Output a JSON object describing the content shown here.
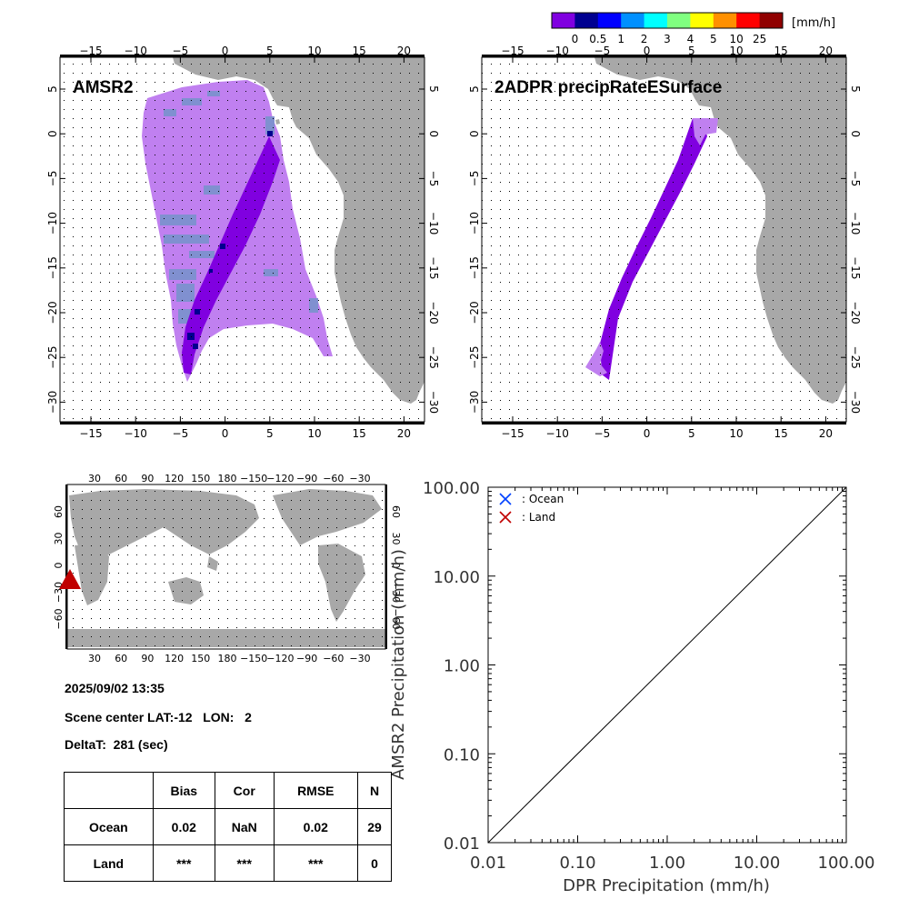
{
  "colorbar": {
    "unit": "[mm/h]",
    "colors": [
      "#8000e0",
      "#000090",
      "#0000ff",
      "#0090ff",
      "#00ffff",
      "#80ff80",
      "#ffff00",
      "#ff9000",
      "#ff0000",
      "#900000"
    ],
    "labels": [
      "0",
      "0.5",
      "1",
      "2",
      "3",
      "4",
      "5",
      "10",
      "25"
    ]
  },
  "maps": {
    "left_title": "AMSR2",
    "right_title": "2ADPR precipRateESurface",
    "lon_ticks": [
      "−15",
      "−10",
      "−5",
      "0",
      "5",
      "10",
      "15",
      "20"
    ],
    "lat_ticks": [
      "5",
      "0",
      "−5",
      "−10",
      "−15",
      "−20",
      "−25",
      "−30"
    ],
    "land_color": "#a8a8a8",
    "ocean_rain_color": "#c080f0",
    "light_rain_color": "#8090d0",
    "swath_color": "#8000e0"
  },
  "world_map": {
    "lon_ticks_top": [
      "30",
      "60",
      "90",
      "120",
      "150",
      "180",
      "−150",
      "−120",
      "−90",
      "−60",
      "−30"
    ],
    "lon_ticks_bottom": [
      "30",
      "60",
      "90",
      "120",
      "150",
      "180",
      "−150",
      "−120",
      "−90",
      "−60",
      "−30"
    ],
    "lat_ticks": [
      "60",
      "30",
      "0",
      "−30",
      "−60"
    ],
    "marker_color": "#c00000"
  },
  "info": {
    "datetime": "2025/09/02 13:35",
    "scene_center": "Scene center LAT:-12   LON:   2",
    "delta_t": "DeltaT:  281 (sec)"
  },
  "stats_table": {
    "headers": [
      "",
      "Bias",
      "Cor",
      "RMSE",
      "N"
    ],
    "rows": [
      [
        "Ocean",
        "0.02",
        "NaN",
        "0.02",
        "29"
      ],
      [
        "Land",
        "***",
        "***",
        "***",
        "0"
      ]
    ]
  },
  "chart_data": {
    "type": "scatter",
    "xlabel": "DPR Precipitation (mm/h)",
    "ylabel": "AMSR2 Precipitation (mm/h)",
    "xscale": "log",
    "yscale": "log",
    "xlim": [
      0.01,
      100
    ],
    "ylim": [
      0.01,
      100
    ],
    "xticks": [
      "0.01",
      "0.10",
      "1.00",
      "10.00",
      "100.00"
    ],
    "yticks": [
      "0.01",
      "0.10",
      "1.00",
      "10.00",
      "100.00"
    ],
    "legend_position": "top-left",
    "series": [
      {
        "name": ": Ocean",
        "color": "#0040ff",
        "marker": "x",
        "points": []
      },
      {
        "name": ": Land",
        "color": "#c00000",
        "marker": "x",
        "points": []
      }
    ],
    "reference_line": "1:1"
  }
}
